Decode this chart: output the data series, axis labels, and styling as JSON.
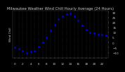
{
  "title": "Milwaukee Weather Wind Chill Hourly Average (24 Hours)",
  "hours": [
    0,
    1,
    2,
    3,
    4,
    5,
    6,
    7,
    8,
    9,
    10,
    11,
    12,
    13,
    14,
    15,
    16,
    17,
    18,
    19,
    20,
    21,
    22,
    23
  ],
  "wind_chill": [
    -5,
    -6,
    -8,
    -10,
    -9,
    -8,
    -4,
    0,
    5,
    12,
    18,
    23,
    26,
    28,
    29,
    26,
    22,
    17,
    13,
    10,
    9,
    8,
    8,
    7
  ],
  "line_color": "#0000ee",
  "bg_color": "#000000",
  "plot_bg_color": "#000000",
  "grid_color": "#555555",
  "title_color": "#cccccc",
  "tick_label_color": "#cccccc",
  "spine_color": "#555555",
  "ylim": [
    -15,
    32
  ],
  "ytick_values": [
    -10,
    -5,
    0,
    5,
    10,
    15,
    20,
    25,
    30
  ],
  "title_fontsize": 3.8,
  "tick_fontsize": 3.0,
  "marker_size": 1.8,
  "line_width": 0.0
}
